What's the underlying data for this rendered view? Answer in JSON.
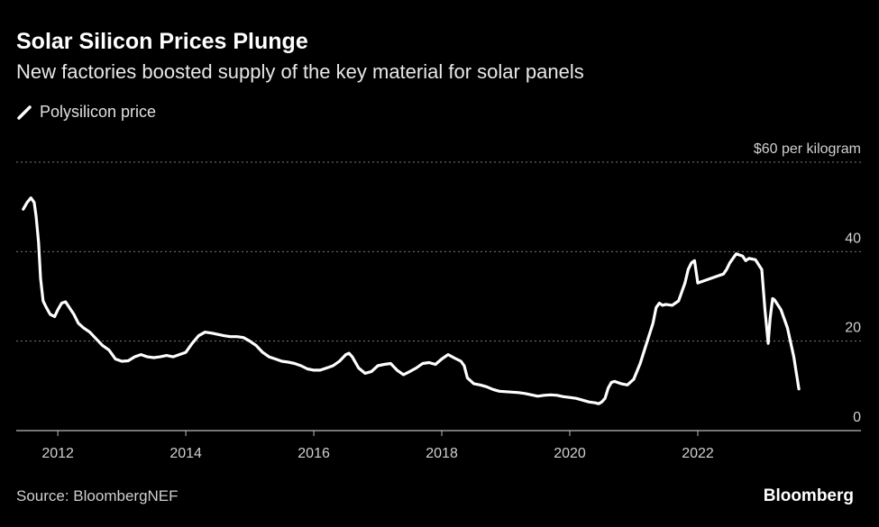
{
  "title": "Solar Silicon Prices Plunge",
  "subtitle": "New factories boosted supply of the key material for solar panels",
  "legend": {
    "label": "Polysilicon price"
  },
  "footer": {
    "source": "Source: BloombergNEF",
    "brand": "Bloomberg"
  },
  "colors": {
    "background": "#000000",
    "line": "#ffffff",
    "grid": "#7a7a7a",
    "text": "#d0d0d0"
  },
  "chart_data": {
    "type": "line",
    "ylim": [
      0,
      60
    ],
    "xlim": [
      2011.35,
      2024.55
    ],
    "grid": "horizontal dotted",
    "y_axis_side": "right",
    "y_ticks": [
      {
        "value": 0,
        "label": "0"
      },
      {
        "value": 20,
        "label": "20"
      },
      {
        "value": 40,
        "label": "40"
      },
      {
        "value": 60,
        "label": "$60 per kilogram"
      }
    ],
    "x_ticks": [
      {
        "value": 2012,
        "label": "2012"
      },
      {
        "value": 2014,
        "label": "2014"
      },
      {
        "value": 2016,
        "label": "2016"
      },
      {
        "value": 2018,
        "label": "2018"
      },
      {
        "value": 2020,
        "label": "2020"
      },
      {
        "value": 2022,
        "label": "2022"
      }
    ],
    "series": [
      {
        "name": "Polysilicon price",
        "x": [
          2011.46,
          2011.52,
          2011.58,
          2011.63,
          2011.66,
          2011.7,
          2011.73,
          2011.77,
          2011.82,
          2011.88,
          2011.95,
          2012.0,
          2012.06,
          2012.12,
          2012.18,
          2012.25,
          2012.32,
          2012.4,
          2012.5,
          2012.6,
          2012.7,
          2012.8,
          2012.9,
          2013.0,
          2013.1,
          2013.2,
          2013.3,
          2013.4,
          2013.5,
          2013.6,
          2013.7,
          2013.8,
          2013.9,
          2014.0,
          2014.1,
          2014.2,
          2014.3,
          2014.4,
          2014.5,
          2014.6,
          2014.7,
          2014.8,
          2014.9,
          2015.0,
          2015.1,
          2015.2,
          2015.3,
          2015.4,
          2015.5,
          2015.6,
          2015.7,
          2015.8,
          2015.9,
          2016.0,
          2016.1,
          2016.2,
          2016.3,
          2016.4,
          2016.5,
          2016.55,
          2016.6,
          2016.7,
          2016.8,
          2016.9,
          2017.0,
          2017.1,
          2017.2,
          2017.3,
          2017.4,
          2017.5,
          2017.6,
          2017.7,
          2017.8,
          2017.9,
          2018.0,
          2018.1,
          2018.2,
          2018.3,
          2018.35,
          2018.4,
          2018.5,
          2018.6,
          2018.7,
          2018.8,
          2018.9,
          2019.0,
          2019.1,
          2019.2,
          2019.3,
          2019.4,
          2019.5,
          2019.6,
          2019.7,
          2019.8,
          2019.9,
          2020.0,
          2020.1,
          2020.2,
          2020.3,
          2020.4,
          2020.45,
          2020.5,
          2020.55,
          2020.6,
          2020.65,
          2020.7,
          2020.8,
          2020.9,
          2021.0,
          2021.1,
          2021.2,
          2021.3,
          2021.35,
          2021.4,
          2021.45,
          2021.5,
          2021.6,
          2021.7,
          2021.8,
          2021.85,
          2021.9,
          2021.95,
          2022.0,
          2022.1,
          2022.2,
          2022.3,
          2022.4,
          2022.45,
          2022.5,
          2022.55,
          2022.6,
          2022.7,
          2022.75,
          2022.8,
          2022.9,
          2023.0,
          2023.05,
          2023.1,
          2023.13,
          2023.17,
          2023.2,
          2023.3,
          2023.4,
          2023.5,
          2023.58
        ],
        "values": [
          49.5,
          51,
          52,
          51,
          48,
          42,
          34,
          29,
          27.5,
          26,
          25.5,
          27,
          28.5,
          28.8,
          27.5,
          26,
          24,
          23,
          22,
          20.5,
          19,
          18,
          16,
          15.5,
          15.6,
          16.5,
          17,
          16.5,
          16.3,
          16.5,
          16.8,
          16.5,
          17,
          17.5,
          19.5,
          21.2,
          22,
          21.8,
          21.5,
          21.2,
          21,
          21,
          20.8,
          20,
          19,
          17.5,
          16.5,
          16,
          15.5,
          15.3,
          15,
          14.5,
          13.8,
          13.5,
          13.5,
          14,
          14.5,
          15.5,
          17,
          17.3,
          16.5,
          14,
          12.8,
          13.2,
          14.5,
          14.8,
          15,
          13.5,
          12.5,
          13.2,
          14,
          15,
          15.2,
          14.8,
          16,
          17,
          16.2,
          15.5,
          14.5,
          11.8,
          10.5,
          10.2,
          9.8,
          9.2,
          8.8,
          8.7,
          8.6,
          8.5,
          8.3,
          8.0,
          7.7,
          7.9,
          8.0,
          7.9,
          7.6,
          7.4,
          7.2,
          6.8,
          6.4,
          6.2,
          6.0,
          6.4,
          7.2,
          9.5,
          10.8,
          11,
          10.5,
          10.2,
          11.5,
          15,
          19.5,
          24,
          27.5,
          28.5,
          28,
          28.2,
          28,
          29,
          33,
          36,
          37.5,
          38,
          33,
          33.5,
          34,
          34.5,
          35,
          36,
          37.5,
          38.5,
          39.5,
          39,
          38,
          38.5,
          38.2,
          36,
          27,
          19.5,
          25,
          29.5,
          29.2,
          27,
          23,
          16.5,
          9.3
        ]
      }
    ]
  }
}
